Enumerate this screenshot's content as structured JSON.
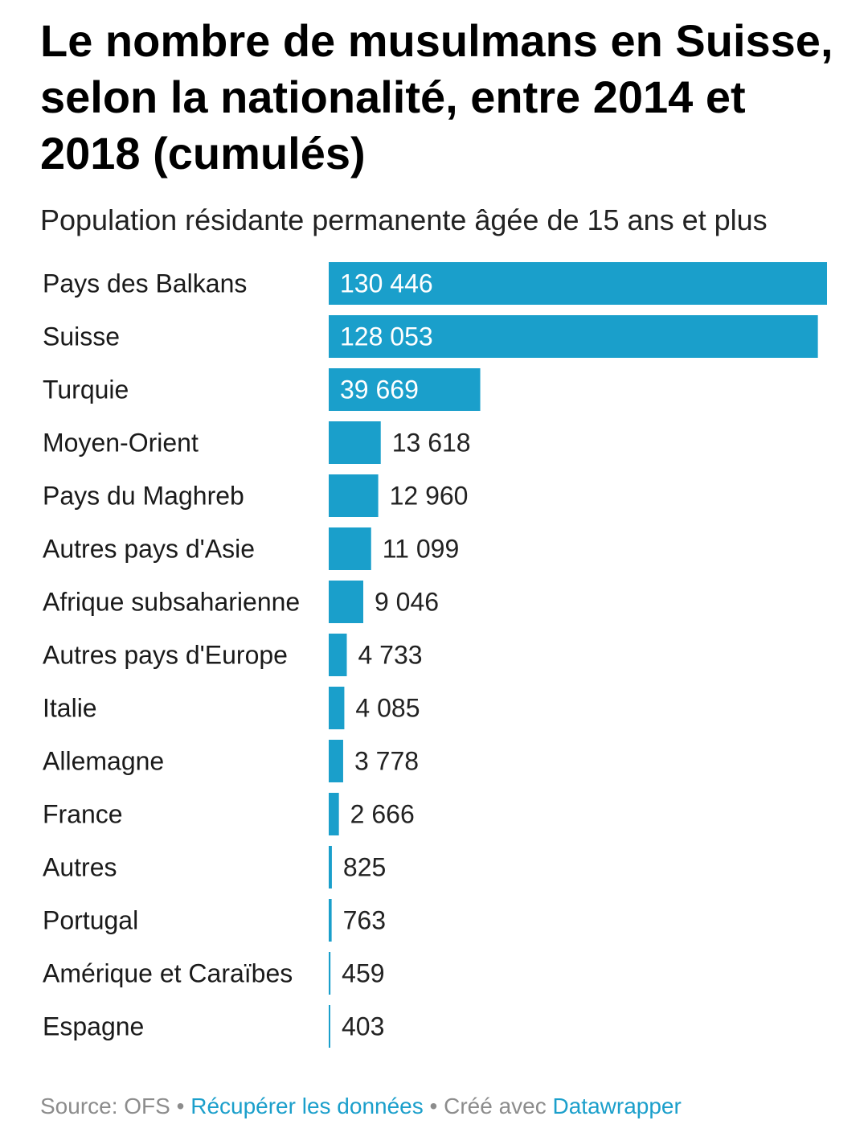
{
  "title": "Le nombre de musulmans en Suisse, selon la nationalité, entre 2014 et 2018 (cumulés)",
  "subtitle": "Population résidante permanente âgée de 15 ans et plus",
  "colors": {
    "bar": "#1a9fcb",
    "label_inside": "#ffffff",
    "label_outside": "#222222",
    "link": "#1b9fcb"
  },
  "chart_data": {
    "type": "bar",
    "orientation": "horizontal",
    "categories": [
      "Pays des Balkans",
      "Suisse",
      "Turquie",
      "Moyen-Orient",
      "Pays du Maghreb",
      "Autres pays d'Asie",
      "Afrique subsaharienne",
      "Autres pays d'Europe",
      "Italie",
      "Allemagne",
      "France",
      "Autres",
      "Portugal",
      "Amérique et Caraïbes",
      "Espagne"
    ],
    "values": [
      130446,
      128053,
      39669,
      13618,
      12960,
      11099,
      9046,
      4733,
      4085,
      3778,
      2666,
      825,
      763,
      459,
      403
    ],
    "value_labels": [
      "130 446",
      "128 053",
      "39 669",
      "13 618",
      "12 960",
      "11 099",
      "9 046",
      "4 733",
      "4 085",
      "3 778",
      "2 666",
      "825",
      "763",
      "459",
      "403"
    ],
    "xlim": [
      0,
      130446
    ],
    "grid": false,
    "legend": "none"
  },
  "footer": {
    "source": "Source: OFS",
    "separator": "•",
    "download_link": "Récupérer les données",
    "created_with": "Créé avec",
    "tool_link": "Datawrapper"
  }
}
